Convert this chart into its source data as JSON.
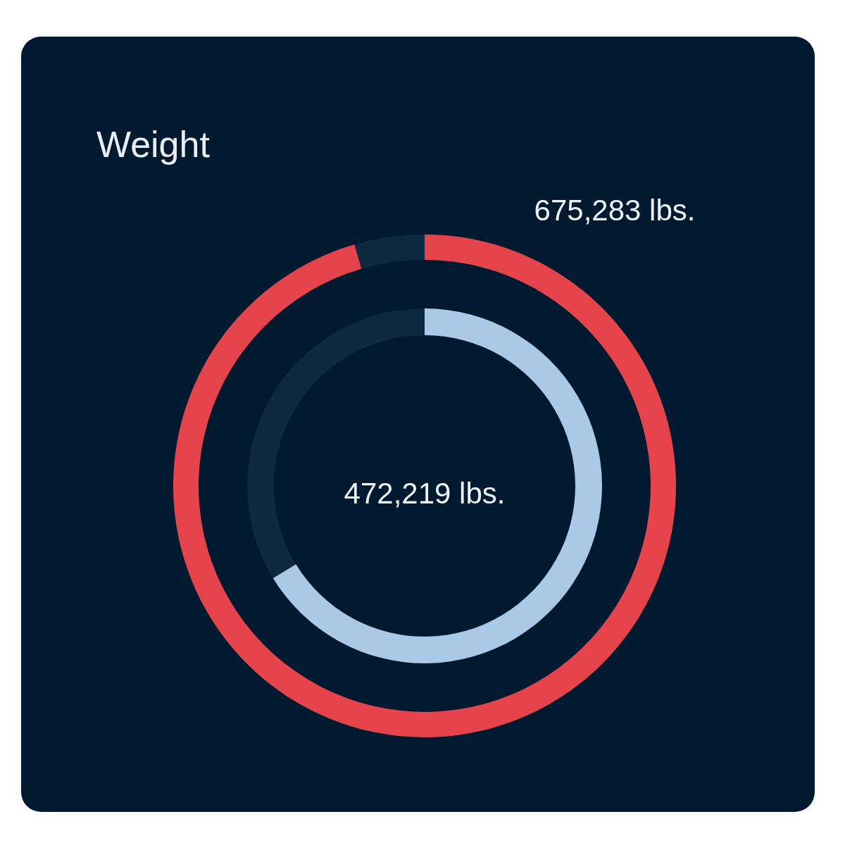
{
  "chart_data": {
    "type": "donut",
    "title": "Weight",
    "categories": [
      null,
      null
    ],
    "series": [
      {
        "values": [
          95.5,
          4.5
        ],
        "colors": [
          "#e5444d",
          "#0d2a40"
        ]
      },
      {
        "values": [
          66.3,
          33.7
        ],
        "colors": [
          "#a9c9e6",
          "#0d2a40"
        ]
      }
    ],
    "annotations": [
      "675,283 lbs.",
      "472,219 lbs."
    ]
  }
}
